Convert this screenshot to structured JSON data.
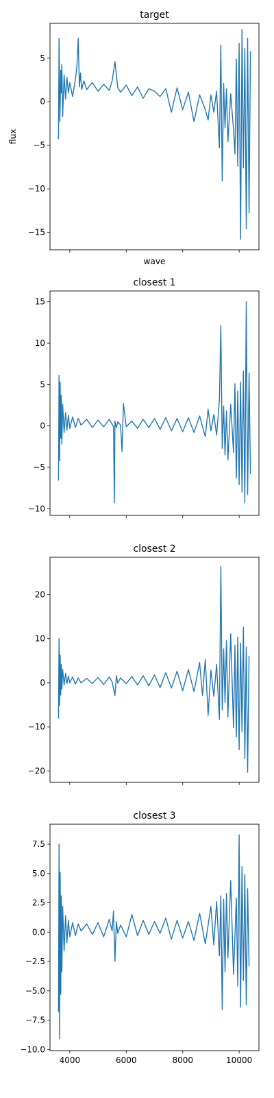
{
  "chart_data": [
    {
      "type": "line",
      "title": "target",
      "xlabel": "wave",
      "ylabel": "flux",
      "show_x_tick_labels": false,
      "xlim": [
        3300,
        10700
      ],
      "ylim": [
        -17,
        9
      ],
      "xticks": [
        4000,
        6000,
        8000,
        10000
      ],
      "yticks": [
        -15,
        -10,
        -5,
        0,
        5
      ],
      "yticklabels": [
        "−15",
        "−10",
        "−5",
        "0",
        "5"
      ],
      "grid": false,
      "series": [
        {
          "color": "#1f77b4",
          "x": [
            3600,
            3620,
            3650,
            3680,
            3700,
            3720,
            3750,
            3800,
            3850,
            3900,
            3950,
            4000,
            4100,
            4200,
            4250,
            4300,
            4340,
            4380,
            4420,
            4500,
            4600,
            4800,
            5000,
            5200,
            5400,
            5500,
            5600,
            5700,
            5800,
            6000,
            6200,
            6400,
            6600,
            6800,
            7000,
            7200,
            7400,
            7600,
            7800,
            8000,
            8200,
            8400,
            8600,
            8800,
            8900,
            9000,
            9100,
            9200,
            9300,
            9350,
            9400,
            9450,
            9500,
            9550,
            9600,
            9700,
            9800,
            9850,
            9900,
            9950,
            10000,
            10050,
            10100,
            10150,
            10200,
            10250,
            10300,
            10350,
            10400
          ],
          "y": [
            -4.3,
            7.3,
            -2.3,
            3.6,
            1.0,
            4.3,
            -1.7,
            3.1,
            0.3,
            2.8,
            1.0,
            2.2,
            0.6,
            2.6,
            4.0,
            7.3,
            1.7,
            3.3,
            1.4,
            2.4,
            1.4,
            2.2,
            1.2,
            2.0,
            1.3,
            2.4,
            4.6,
            1.6,
            1.1,
            1.9,
            0.7,
            1.7,
            0.4,
            1.5,
            1.2,
            0.6,
            1.5,
            -1.2,
            1.6,
            -0.9,
            1.1,
            -2.3,
            0.8,
            -0.9,
            -2.1,
            0.8,
            -1.2,
            1.2,
            -5.3,
            6.5,
            -9.1,
            2.1,
            -3.0,
            1.5,
            -4.6,
            0.9,
            -3.2,
            -6.0,
            4.9,
            -7.4,
            6.7,
            -15.8,
            8.3,
            -7.6,
            6.1,
            -14.6,
            7.3,
            -12.8,
            5.8
          ]
        }
      ]
    },
    {
      "type": "line",
      "title": "closest 1",
      "xlabel": "",
      "ylabel": "",
      "show_x_tick_labels": false,
      "xlim": [
        3300,
        10700
      ],
      "ylim": [
        -10.8,
        16.3
      ],
      "xticks": [
        4000,
        6000,
        8000,
        10000
      ],
      "yticks": [
        -10,
        -5,
        0,
        5,
        10,
        15
      ],
      "yticklabels": [
        "−10",
        "−5",
        "0",
        "5",
        "10",
        "15"
      ],
      "grid": false,
      "series": [
        {
          "color": "#1f77b4",
          "x": [
            3600,
            3620,
            3640,
            3660,
            3680,
            3700,
            3720,
            3750,
            3800,
            3850,
            3900,
            3950,
            4000,
            4100,
            4200,
            4300,
            4400,
            4600,
            4800,
            5000,
            5200,
            5400,
            5500,
            5550,
            5580,
            5600,
            5650,
            5700,
            5800,
            5850,
            5900,
            6000,
            6200,
            6400,
            6600,
            6800,
            7000,
            7200,
            7400,
            7600,
            7800,
            8000,
            8200,
            8400,
            8600,
            8800,
            8900,
            9000,
            9100,
            9200,
            9300,
            9350,
            9400,
            9450,
            9500,
            9550,
            9600,
            9700,
            9800,
            9850,
            9900,
            9950,
            10000,
            10050,
            10100,
            10150,
            10200,
            10250,
            10300,
            10350,
            10400
          ],
          "y": [
            -6.6,
            6.1,
            -4.2,
            5.3,
            -1.5,
            3.7,
            -2.2,
            2.6,
            -0.8,
            1.6,
            -0.5,
            1.3,
            -0.3,
            1.1,
            -0.2,
            0.9,
            0.1,
            0.8,
            -0.2,
            0.7,
            -0.1,
            0.8,
            0.2,
            -0.1,
            -9.3,
            0.6,
            -0.2,
            0.5,
            0.1,
            -3.1,
            2.7,
            -0.1,
            0.6,
            -0.3,
            0.8,
            -0.2,
            0.9,
            -0.4,
            1.0,
            -0.6,
            0.9,
            -0.7,
            1.0,
            -0.8,
            1.2,
            -1.3,
            2.0,
            -0.6,
            1.4,
            -1.1,
            3.1,
            12.1,
            -2.7,
            2.4,
            -3.5,
            1.8,
            -4.1,
            2.6,
            -3.2,
            5.1,
            -6.3,
            4.2,
            -7.1,
            5.3,
            -8.0,
            6.6,
            -9.3,
            15.0,
            -8.3,
            6.4,
            -5.8
          ]
        }
      ]
    },
    {
      "type": "line",
      "title": "closest 2",
      "xlabel": "",
      "ylabel": "",
      "show_x_tick_labels": false,
      "xlim": [
        3300,
        10700
      ],
      "ylim": [
        -22.6,
        28.5
      ],
      "xticks": [
        4000,
        6000,
        8000,
        10000
      ],
      "yticks": [
        -20,
        -10,
        0,
        10,
        20
      ],
      "yticklabels": [
        "−20",
        "−10",
        "0",
        "10",
        "20"
      ],
      "grid": false,
      "series": [
        {
          "color": "#1f77b4",
          "x": [
            3600,
            3620,
            3640,
            3660,
            3680,
            3700,
            3720,
            3750,
            3800,
            3850,
            3900,
            3950,
            4000,
            4100,
            4200,
            4300,
            4400,
            4600,
            4800,
            5000,
            5200,
            5400,
            5500,
            5600,
            5650,
            5700,
            5800,
            6000,
            6200,
            6400,
            6600,
            6800,
            7000,
            7200,
            7400,
            7600,
            7800,
            8000,
            8200,
            8400,
            8600,
            8700,
            8800,
            8900,
            9000,
            9100,
            9200,
            9300,
            9350,
            9400,
            9450,
            9500,
            9550,
            9600,
            9700,
            9800,
            9850,
            9900,
            9950,
            10000,
            10050,
            10100,
            10150,
            10200,
            10250,
            10300,
            10350
          ],
          "y": [
            -8.1,
            10.0,
            -5.2,
            6.3,
            -2.8,
            4.2,
            -1.4,
            3.0,
            -0.5,
            2.1,
            -0.2,
            1.5,
            0.0,
            1.3,
            -0.3,
            1.1,
            0.0,
            1.0,
            -0.2,
            1.2,
            -0.4,
            1.3,
            0.2,
            -2.9,
            1.6,
            -0.1,
            1.1,
            -0.2,
            1.4,
            -0.5,
            1.6,
            -0.7,
            1.8,
            -1.1,
            2.3,
            -1.2,
            2.6,
            -1.8,
            3.0,
            -2.0,
            4.6,
            -2.9,
            5.3,
            -7.4,
            2.9,
            -3.1,
            4.2,
            -8.3,
            26.4,
            -6.2,
            7.7,
            -4.5,
            9.6,
            -7.8,
            11.1,
            -10.2,
            8.5,
            -12.3,
            10.4,
            -15.2,
            9.0,
            -11.2,
            12.6,
            -17.2,
            8.1,
            -20.3,
            6.1
          ]
        }
      ]
    },
    {
      "type": "line",
      "title": "closest 3",
      "xlabel": "",
      "ylabel": "",
      "show_x_tick_labels": true,
      "xlim": [
        3300,
        10700
      ],
      "ylim": [
        -10.1,
        9.2
      ],
      "xticks": [
        4000,
        6000,
        8000,
        10000
      ],
      "xticklabels": [
        "4000",
        "6000",
        "8000",
        "10000"
      ],
      "yticks": [
        -10.0,
        -7.5,
        -5.0,
        -2.5,
        0.0,
        2.5,
        5.0,
        7.5
      ],
      "yticklabels": [
        "−10.0",
        "−7.5",
        "−5.0",
        "−2.5",
        "0.0",
        "2.5",
        "5.0",
        "7.5"
      ],
      "grid": false,
      "series": [
        {
          "color": "#1f77b4",
          "x": [
            3600,
            3620,
            3640,
            3660,
            3680,
            3700,
            3720,
            3750,
            3800,
            3850,
            3900,
            3950,
            4000,
            4100,
            4200,
            4300,
            4400,
            4600,
            4800,
            5000,
            5200,
            5400,
            5500,
            5550,
            5600,
            5650,
            5700,
            5800,
            6000,
            6200,
            6400,
            6600,
            6800,
            7000,
            7200,
            7400,
            7600,
            7800,
            8000,
            8200,
            8400,
            8600,
            8800,
            9000,
            9100,
            9200,
            9300,
            9350,
            9400,
            9450,
            9500,
            9550,
            9600,
            9700,
            9800,
            9900,
            9950,
            10000,
            10050,
            10100,
            10150,
            10200,
            10250,
            10300,
            10350
          ],
          "y": [
            -6.8,
            7.5,
            -9.1,
            5.1,
            -5.3,
            3.1,
            -3.4,
            2.2,
            -1.6,
            1.4,
            -0.9,
            1.0,
            -0.4,
            0.8,
            -0.3,
            0.7,
            0.1,
            0.7,
            -0.2,
            0.8,
            -0.4,
            1.1,
            0.1,
            1.8,
            -2.5,
            0.9,
            -0.1,
            0.6,
            -0.4,
            1.5,
            -0.3,
            1.0,
            -0.2,
            0.9,
            -0.1,
            1.2,
            -0.6,
            1.0,
            -0.5,
            0.9,
            -0.7,
            1.6,
            -1.0,
            2.2,
            -1.1,
            2.6,
            -2.0,
            3.1,
            -6.6,
            2.8,
            -3.4,
            3.3,
            -2.2,
            4.4,
            -3.6,
            2.9,
            -4.6,
            8.3,
            -6.4,
            5.6,
            -4.1,
            4.9,
            -6.2,
            3.7,
            -2.9
          ]
        }
      ]
    }
  ]
}
